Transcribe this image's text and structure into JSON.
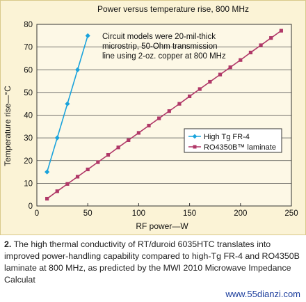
{
  "chart_data": {
    "type": "line",
    "title": "Power versus temperature rise, 800 MHz",
    "xlabel": "RF power—W",
    "ylabel": "Temperature rise—°C",
    "xlim": [
      0,
      250
    ],
    "ylim": [
      0,
      80
    ],
    "xticks": [
      0,
      50,
      100,
      150,
      200,
      250
    ],
    "yticks": [
      0,
      10,
      20,
      30,
      40,
      50,
      60,
      70,
      80
    ],
    "grid": "horizontal",
    "annotation": [
      "Circuit models were 20-mil-thick",
      "microstrip, 50-Ohm transmission",
      "line using 2-oz. copper at 800 MHz"
    ],
    "legend_position": "center-right",
    "series": [
      {
        "name": "High Tg FR-4",
        "color": "#1aa3dc",
        "marker": "diamond",
        "x": [
          10,
          20,
          30,
          40,
          50
        ],
        "y": [
          15,
          30,
          45,
          60,
          75
        ]
      },
      {
        "name": "RO4350B™ laminate",
        "color": "#b03868",
        "marker": "square",
        "x": [
          10,
          20,
          30,
          40,
          50,
          60,
          70,
          80,
          90,
          100,
          110,
          120,
          130,
          140,
          150,
          160,
          170,
          180,
          190,
          200,
          210,
          220,
          230,
          240
        ],
        "y": [
          3.2,
          6.5,
          9.7,
          12.9,
          16.1,
          19.3,
          22.5,
          25.8,
          29.0,
          32.2,
          35.4,
          38.6,
          41.8,
          45.0,
          48.3,
          51.5,
          54.7,
          57.9,
          61.1,
          64.3,
          67.6,
          70.8,
          74.0,
          77.2
        ]
      }
    ]
  },
  "caption": {
    "number": "2.",
    "text": "The high thermal conductivity of RT/duroid 6035HTC translates into improved power-handling capability compared to high-Tg FR-4 and RO4350B laminate at 800 MHz, as predicted by the MWI 2010 Microwave Impedance Calculat"
  },
  "watermark": "www.55dianzi.com"
}
